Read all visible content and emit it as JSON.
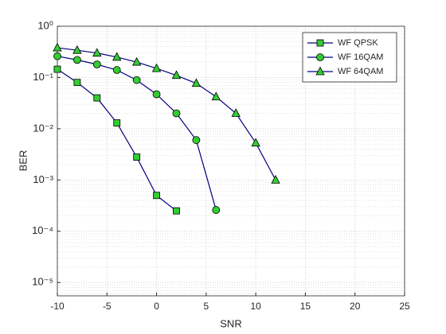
{
  "chart_data": {
    "type": "line",
    "xlabel": "SNR",
    "ylabel": "BER",
    "xlim": [
      -10,
      25
    ],
    "xticks": [
      -10,
      -5,
      0,
      5,
      10,
      15,
      20,
      25
    ],
    "ylim": [
      5.5e-06,
      1
    ],
    "log_y": true,
    "grid": true,
    "legend": "upper right",
    "yticks": [
      {
        "value": 1,
        "label": "10⁰"
      },
      {
        "value": 0.1,
        "label": "10⁻¹"
      },
      {
        "value": 0.01,
        "label": "10⁻²"
      },
      {
        "value": 0.001,
        "label": "10⁻³"
      },
      {
        "value": 0.0001,
        "label": "10⁻⁴"
      },
      {
        "value": 1e-05,
        "label": "10⁻⁵"
      }
    ],
    "series": [
      {
        "name": "WF QPSK",
        "color": "#00007f",
        "marker_color": "#33cc33",
        "marker": "square",
        "x": [
          -10,
          -8,
          -6,
          -4,
          -2,
          0,
          2
        ],
        "values": [
          0.145,
          0.08,
          0.04,
          0.013,
          0.0028,
          0.0005,
          0.00025
        ]
      },
      {
        "name": "WF 16QAM",
        "color": "#00007f",
        "marker_color": "#33cc33",
        "marker": "circle",
        "x": [
          -10,
          -8,
          -6,
          -4,
          -2,
          0,
          2,
          4,
          6
        ],
        "values": [
          0.26,
          0.22,
          0.18,
          0.14,
          0.089,
          0.047,
          0.02,
          0.006,
          0.00026
        ]
      },
      {
        "name": "WF 64QAM",
        "color": "#00007f",
        "marker_color": "#33cc33",
        "marker": "triangle",
        "x": [
          -10,
          -8,
          -6,
          -4,
          -2,
          0,
          2,
          4,
          6,
          8,
          10,
          12
        ],
        "values": [
          0.38,
          0.34,
          0.3,
          0.25,
          0.2,
          0.15,
          0.11,
          0.077,
          0.042,
          0.02,
          0.0053,
          0.001
        ]
      }
    ]
  }
}
